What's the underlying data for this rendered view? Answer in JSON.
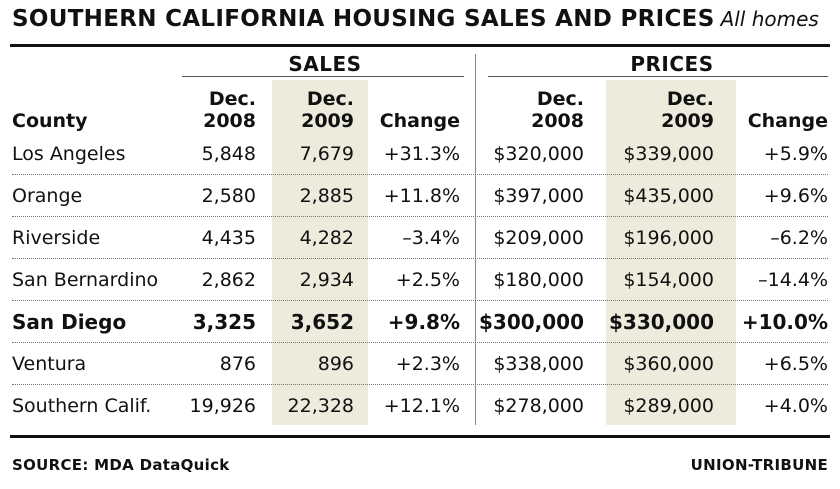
{
  "header": {
    "title": "SOUTHERN CALIFORNIA HOUSING SALES AND PRICES",
    "subtitle": "All homes"
  },
  "groups": {
    "sales": "SALES",
    "prices": "PRICES"
  },
  "columns": {
    "county": "County",
    "sales_2008": [
      "Dec.",
      "2008"
    ],
    "sales_2009": [
      "Dec.",
      "2009"
    ],
    "sales_change": "Change",
    "prices_2008": [
      "Dec.",
      "2008"
    ],
    "prices_2009": [
      "Dec.",
      "2009"
    ],
    "prices_change": "Change"
  },
  "rows": [
    [
      "Los Angeles",
      "5,848",
      "7,679",
      "+31.3%",
      "$320,000",
      "$339,000",
      "+5.9%"
    ],
    [
      "Orange",
      "2,580",
      "2,885",
      "+11.8%",
      "$397,000",
      "$435,000",
      "+9.6%"
    ],
    [
      "Riverside",
      "4,435",
      "4,282",
      "–3.4%",
      "$209,000",
      "$196,000",
      "–6.2%"
    ],
    [
      "San Bernardino",
      "2,862",
      "2,934",
      "+2.5%",
      "$180,000",
      "$154,000",
      "–14.4%"
    ],
    [
      "San Diego",
      "3,325",
      "3,652",
      "+9.8%",
      "$300,000",
      "$330,000",
      "+10.0%"
    ],
    [
      "Ventura",
      "876",
      "896",
      "+2.3%",
      "$338,000",
      "$360,000",
      "+6.5%"
    ],
    [
      "Southern Calif.",
      "19,926",
      "22,328",
      "+12.1%",
      "$278,000",
      "$289,000",
      "+4.0%"
    ]
  ],
  "footer": {
    "source": "SOURCE: MDA DataQuick",
    "credit": "UNION-TRIBUNE"
  },
  "colors": {
    "shade": "#ecebdc",
    "rule": "#111111"
  },
  "chart_data": {
    "type": "table",
    "title": "SOUTHERN CALIFORNIA HOUSING SALES AND PRICES",
    "subtitle": "All homes",
    "columns": [
      "County",
      "Sales Dec. 2008",
      "Sales Dec. 2009",
      "Sales Change",
      "Prices Dec. 2008",
      "Prices Dec. 2009",
      "Prices Change"
    ],
    "rows": [
      [
        "Los Angeles",
        5848,
        7679,
        31.3,
        320000,
        339000,
        5.9
      ],
      [
        "Orange",
        2580,
        2885,
        11.8,
        397000,
        435000,
        9.6
      ],
      [
        "Riverside",
        4435,
        4282,
        -3.4,
        209000,
        196000,
        -6.2
      ],
      [
        "San Bernardino",
        2862,
        2934,
        2.5,
        180000,
        154000,
        -14.4
      ],
      [
        "San Diego",
        3325,
        3652,
        9.8,
        300000,
        330000,
        10.0
      ],
      [
        "Ventura",
        876,
        896,
        2.3,
        338000,
        360000,
        6.5
      ],
      [
        "Southern Calif.",
        19926,
        22328,
        12.1,
        278000,
        289000,
        4.0
      ]
    ],
    "highlight_row": "San Diego"
  }
}
